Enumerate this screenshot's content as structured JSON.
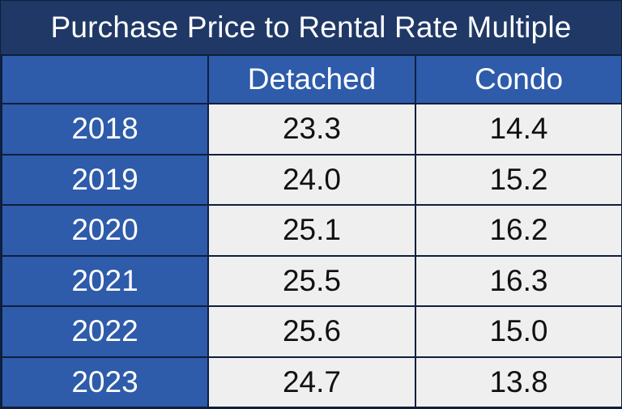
{
  "chart_data": {
    "type": "table",
    "title": "Purchase Price to Rental Rate Multiple",
    "columns": [
      "Detached",
      "Condo"
    ],
    "rows": [
      {
        "label": "2018",
        "values": [
          "23.3",
          "14.4"
        ]
      },
      {
        "label": "2019",
        "values": [
          "24.0",
          "15.2"
        ]
      },
      {
        "label": "2020",
        "values": [
          "25.1",
          "16.2"
        ]
      },
      {
        "label": "2021",
        "values": [
          "25.5",
          "16.3"
        ]
      },
      {
        "label": "2022",
        "values": [
          "25.6",
          "15.0"
        ]
      },
      {
        "label": "2023",
        "values": [
          "24.7",
          "13.8"
        ]
      }
    ]
  },
  "colors": {
    "title_bg": "#1f3866",
    "header_bg": "#2e5baa",
    "cell_bg": "#efefef",
    "border": "#0f1f3d",
    "header_text": "#ffffff",
    "cell_text": "#111111"
  }
}
